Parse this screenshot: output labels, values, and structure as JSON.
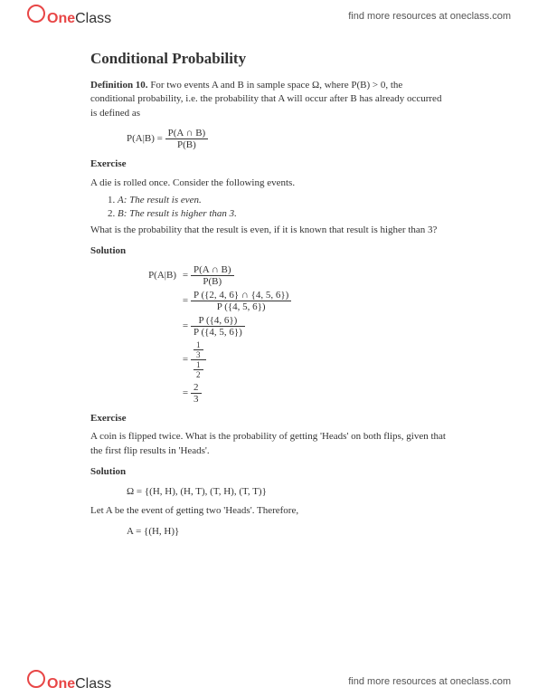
{
  "header": {
    "logo_one": "One",
    "logo_class": "Class",
    "resources_link": "find more resources at oneclass.com"
  },
  "title": "Conditional Probability",
  "definition": {
    "label": "Definition 10.",
    "text": "For two events A and B in sample space Ω, where P(B) > 0, the conditional probability, i.e. the probability that A will occur after B has already occurred is defined as",
    "formula_lhs": "P(A|B) =",
    "formula_num": "P(A ∩ B)",
    "formula_den": "P(B)"
  },
  "exercise1": {
    "label": "Exercise",
    "intro": "A die is rolled once. Consider the following events.",
    "item1": "A: The result is even.",
    "item2": "B: The result is higher than 3.",
    "question": "What is the probability that the result is even, if it is known that result is higher than 3?"
  },
  "solution1": {
    "label": "Solution",
    "lhs": "P(A|B)",
    "step1_num": "P(A ∩ B)",
    "step1_den": "P(B)",
    "step2_num": "P ({2, 4, 6} ∩ {4, 5, 6})",
    "step2_den": "P ({4, 5, 6})",
    "step3_num": "P ({4, 6})",
    "step3_den": "P ({4, 5, 6})",
    "step4_num_num": "1",
    "step4_num_den": "3",
    "step4_den_num": "1",
    "step4_den_den": "2",
    "step5_num": "2",
    "step5_den": "3"
  },
  "exercise2": {
    "label": "Exercise",
    "text": "A coin is flipped twice. What is the probability of getting 'Heads' on both flips, given that the first flip results in 'Heads'."
  },
  "solution2": {
    "label": "Solution",
    "omega": "Ω = {(H, H), (H, T), (T, H), (T, T)}",
    "let_text": "Let A be the event of getting two 'Heads'. Therefore,",
    "a_set": "A = {(H, H)}"
  }
}
